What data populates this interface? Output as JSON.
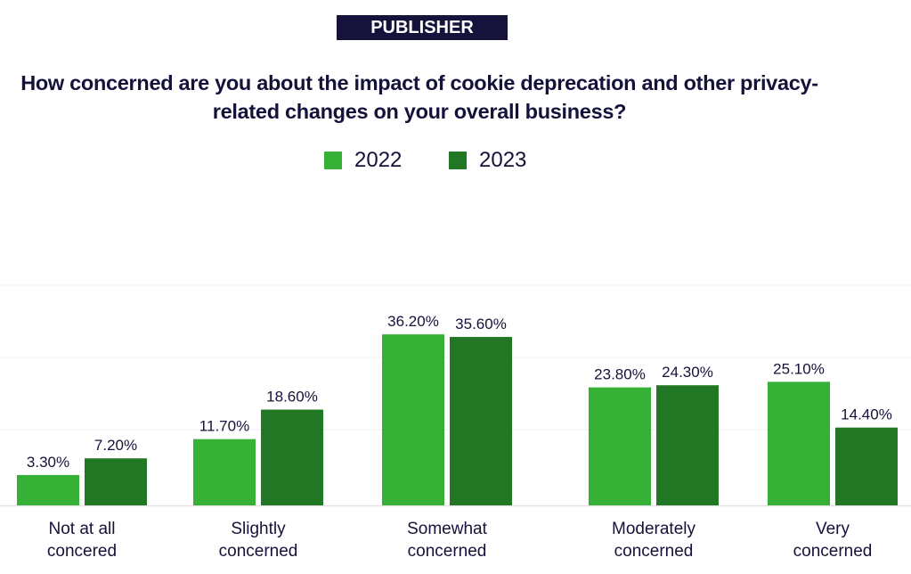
{
  "badge": "PUBLISHER",
  "chart_data": {
    "type": "bar",
    "title": "How concerned are you about the impact of cookie deprecation and other privacy-related changes on your overall business?",
    "categories": [
      [
        "Not at all",
        "concered"
      ],
      [
        "Slightly",
        "concerned"
      ],
      [
        "Somewhat",
        "concerned"
      ],
      [
        "Moderately",
        "concerned"
      ],
      [
        "Very",
        "concerned"
      ]
    ],
    "series": [
      {
        "name": "2022",
        "color": "#36b035",
        "values": [
          3.3,
          11.7,
          36.2,
          23.8,
          25.1
        ],
        "labels": [
          "3.30%",
          "11.70%",
          "36.20%",
          "23.80%",
          "25.10%"
        ]
      },
      {
        "name": "2023",
        "color": "#217723",
        "values": [
          7.2,
          18.6,
          35.6,
          24.3,
          14.4
        ],
        "labels": [
          "7.20%",
          "18.60%",
          "35.60%",
          "24.30%",
          "14.40%"
        ]
      }
    ],
    "xlabel": "",
    "ylabel": "",
    "ylim": [
      -3.8,
      47.7
    ],
    "grid": true,
    "legend": "top-center"
  }
}
